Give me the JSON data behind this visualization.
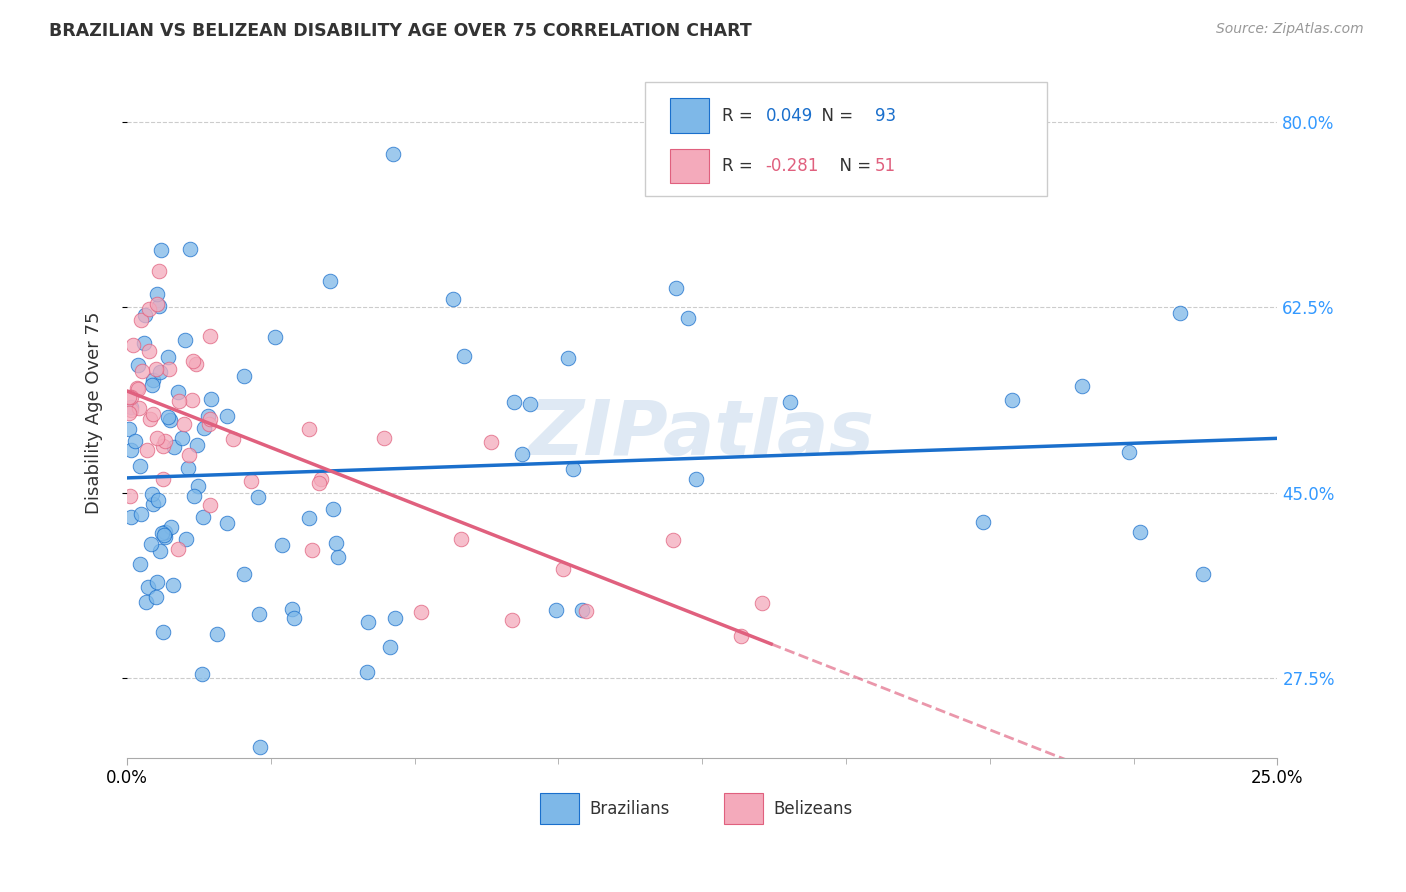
{
  "title": "BRAZILIAN VS BELIZEAN DISABILITY AGE OVER 75 CORRELATION CHART",
  "source": "Source: ZipAtlas.com",
  "ylabel": "Disability Age Over 75",
  "ytick_values": [
    27.5,
    45.0,
    62.5,
    80.0
  ],
  "xlim": [
    0.0,
    25.0
  ],
  "ylim": [
    20.0,
    85.0
  ],
  "brazil_R": 0.049,
  "brazil_N": 93,
  "belize_R": -0.281,
  "belize_N": 51,
  "brazil_color": "#7EB8E8",
  "belize_color": "#F4AABB",
  "brazil_line_color": "#1A6FCC",
  "belize_line_color": "#E0607E",
  "watermark": "ZIPatlas",
  "legend_brazil": "Brazilians",
  "legend_belize": "Belizeans"
}
